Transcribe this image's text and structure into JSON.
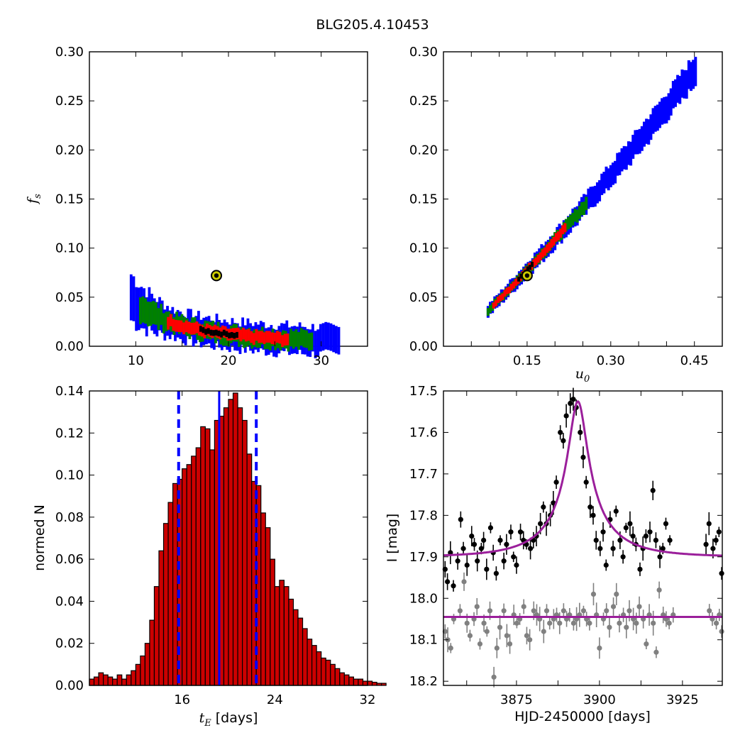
{
  "figure_title": "BLG205.4.10453",
  "colors": {
    "blue": "#0000ff",
    "green": "#008000",
    "red": "#ff0000",
    "black": "#000000",
    "hist_fill": "#cc0000",
    "grey": "#808080",
    "model": "#9b1f9b",
    "marker": "#cccc00"
  },
  "chart_data": [
    {
      "panel": "top-left",
      "type": "heatmap",
      "xlabel": "",
      "ylabel": "f_s",
      "ylabel_main": "f",
      "ylabel_sub": "s",
      "xlim": [
        5,
        35
      ],
      "ylim": [
        0.0,
        0.3
      ],
      "xticks": [
        "10",
        "20",
        "30"
      ],
      "yticks": [
        "0.00",
        "0.05",
        "0.10",
        "0.15",
        "0.20",
        "0.25",
        "0.30"
      ],
      "description_curve": "f_s = 3.6 / tE^1.9",
      "levels": [
        {
          "color": "blue",
          "tE_range": [
            9.5,
            32.0
          ]
        },
        {
          "color": "green",
          "tE_range": [
            10.5,
            29.0
          ]
        },
        {
          "color": "red",
          "tE_range": [
            13.5,
            26.5
          ]
        },
        {
          "color": "black",
          "tE_range": [
            17.0,
            21.0
          ]
        }
      ],
      "best_fit": {
        "tE": 18.7,
        "f_s": 0.072
      }
    },
    {
      "panel": "top-right",
      "type": "heatmap",
      "xlabel": "u_0",
      "xlabel_main": "u",
      "xlabel_sub": "0",
      "ylabel": "",
      "xlim": [
        0.0,
        0.5
      ],
      "ylim": [
        0.0,
        0.3
      ],
      "xticks": [
        "0.15",
        "0.30",
        "0.45"
      ],
      "yticks": [
        "0.00",
        "0.05",
        "0.10",
        "0.15",
        "0.20",
        "0.25",
        "0.30"
      ],
      "levels": [
        {
          "color": "blue",
          "u0_range": [
            0.08,
            0.455
          ]
        },
        {
          "color": "green",
          "u0_range": [
            0.08,
            0.26
          ]
        },
        {
          "color": "red",
          "u0_range": [
            0.09,
            0.22
          ]
        },
        {
          "color": "black",
          "u0_range": [
            0.135,
            0.16
          ]
        }
      ],
      "best_fit": {
        "u0": 0.15,
        "f_s": 0.072
      }
    },
    {
      "panel": "bottom-left",
      "type": "bar",
      "xlabel": "t_E [days]",
      "xlabel_main": "t",
      "xlabel_sub": "E",
      "xlabel_rest": " [days]",
      "ylabel": "normed N",
      "xlim": [
        8,
        32
      ],
      "ylim": [
        0.0,
        0.14
      ],
      "xticks": [
        "16",
        "24",
        "32"
      ],
      "yticks": [
        "0.00",
        "0.02",
        "0.04",
        "0.06",
        "0.08",
        "0.10",
        "0.12",
        "0.14"
      ],
      "bin_start": 8.0,
      "bin_width": 0.4,
      "values": [
        0.003,
        0.004,
        0.006,
        0.005,
        0.004,
        0.003,
        0.005,
        0.003,
        0.005,
        0.007,
        0.01,
        0.014,
        0.02,
        0.031,
        0.047,
        0.064,
        0.077,
        0.087,
        0.096,
        0.098,
        0.103,
        0.105,
        0.109,
        0.113,
        0.123,
        0.122,
        0.112,
        0.126,
        0.128,
        0.132,
        0.136,
        0.139,
        0.132,
        0.126,
        0.11,
        0.097,
        0.095,
        0.082,
        0.075,
        0.06,
        0.047,
        0.05,
        0.047,
        0.041,
        0.036,
        0.032,
        0.027,
        0.022,
        0.019,
        0.016,
        0.013,
        0.012,
        0.01,
        0.008,
        0.006,
        0.005,
        0.004,
        0.003,
        0.003,
        0.002,
        0.002,
        0.0015,
        0.001,
        0.001
      ],
      "median_line": 19.2,
      "dashed_lines": [
        15.7,
        22.4
      ]
    },
    {
      "panel": "bottom-right",
      "type": "scatter",
      "xlabel": "HJD-2450000 [days]",
      "ylabel": "I [mag]",
      "xlim": [
        3853,
        3937
      ],
      "ylim": [
        18.21,
        17.5
      ],
      "xticks": [
        "3875",
        "3900",
        "3925"
      ],
      "yticks": [
        "17.5",
        "17.6",
        "17.7",
        "17.8",
        "17.9",
        "18.0",
        "18.1",
        "18.2"
      ],
      "model": {
        "t0": 3893.5,
        "tE": 18.7,
        "u0": 0.15,
        "f_s": 0.072,
        "baseline": 17.9
      },
      "series": [
        {
          "name": "",
          "color": "black",
          "x": [
            3853.5,
            3854.2,
            3855.1,
            3856.0,
            3857.3,
            3858.2,
            3859.0,
            3860.1,
            3861.5,
            3862.3,
            3863.2,
            3864.4,
            3865.1,
            3866.0,
            3867.2,
            3868.0,
            3868.9,
            3870.1,
            3871.2,
            3872.0,
            3873.3,
            3874.1,
            3875.0,
            3876.2,
            3877.1,
            3878.0,
            3879.2,
            3880.1,
            3881.0,
            3882.2,
            3883.1,
            3884.0,
            3885.2,
            3886.1,
            3887.0,
            3888.2,
            3889.1,
            3890.0,
            3891.2,
            3892.1,
            3893.0,
            3894.2,
            3895.1,
            3896.0,
            3897.2,
            3898.1,
            3899.0,
            3900.2,
            3901.1,
            3902.0,
            3903.2,
            3904.1,
            3905.0,
            3906.2,
            3907.1,
            3908.0,
            3909.2,
            3910.1,
            3911.0,
            3912.2,
            3913.1,
            3914.0,
            3915.2,
            3916.1,
            3917.0,
            3918.2,
            3919.1,
            3920.0,
            3921.2,
            3932.1,
            3933.0,
            3934.2,
            3935.1,
            3936.0,
            3936.8
          ],
          "y": [
            17.93,
            17.96,
            17.89,
            17.97,
            17.91,
            17.81,
            17.88,
            17.92,
            17.85,
            17.87,
            17.91,
            17.88,
            17.86,
            17.93,
            17.83,
            17.89,
            17.94,
            17.86,
            17.91,
            17.87,
            17.84,
            17.9,
            17.92,
            17.84,
            17.86,
            17.87,
            17.88,
            17.86,
            17.85,
            17.82,
            17.78,
            17.82,
            17.8,
            17.77,
            17.72,
            17.6,
            17.62,
            17.56,
            17.53,
            17.52,
            17.54,
            17.6,
            17.66,
            17.72,
            17.78,
            17.8,
            17.86,
            17.88,
            17.84,
            17.92,
            17.81,
            17.88,
            17.79,
            17.86,
            17.9,
            17.83,
            17.82,
            17.85,
            17.87,
            17.93,
            17.88,
            17.85,
            17.84,
            17.74,
            17.86,
            17.9,
            17.88,
            17.82,
            17.86,
            17.87,
            17.82,
            17.88,
            17.86,
            17.84,
            17.94
          ]
        },
        {
          "name": "",
          "color": "grey",
          "x": [
            3853.5,
            3854.3,
            3855.2,
            3856.1,
            3858.0,
            3859.2,
            3860.1,
            3861.0,
            3862.2,
            3863.1,
            3864.0,
            3865.2,
            3866.1,
            3867.0,
            3868.2,
            3869.1,
            3870.0,
            3871.2,
            3872.1,
            3873.0,
            3874.2,
            3875.1,
            3876.0,
            3877.2,
            3878.1,
            3879.0,
            3880.2,
            3881.1,
            3882.0,
            3883.2,
            3884.1,
            3885.0,
            3886.2,
            3887.1,
            3888.0,
            3889.2,
            3890.1,
            3891.0,
            3892.2,
            3893.1,
            3894.0,
            3895.2,
            3896.1,
            3897.0,
            3898.2,
            3899.1,
            3900.0,
            3901.2,
            3902.1,
            3903.0,
            3904.2,
            3905.1,
            3906.0,
            3907.2,
            3908.1,
            3909.0,
            3910.2,
            3911.1,
            3912.0,
            3913.2,
            3914.1,
            3915.0,
            3916.2,
            3917.1,
            3918.0,
            3919.2,
            3920.1,
            3921.0,
            3922.2,
            3933.1,
            3934.0,
            3935.2,
            3936.1,
            3936.8
          ],
          "y": [
            18.08,
            18.1,
            18.12,
            18.05,
            18.03,
            17.96,
            18.06,
            18.09,
            18.05,
            18.02,
            18.11,
            18.06,
            18.08,
            18.03,
            18.19,
            18.12,
            18.07,
            18.03,
            18.09,
            18.11,
            18.04,
            18.06,
            18.05,
            18.02,
            18.09,
            18.1,
            18.03,
            18.04,
            18.05,
            18.08,
            18.03,
            18.06,
            18.05,
            18.04,
            18.06,
            18.03,
            18.05,
            18.04,
            18.06,
            18.05,
            18.04,
            18.03,
            18.05,
            18.06,
            17.99,
            18.04,
            18.12,
            18.05,
            18.03,
            18.07,
            18.02,
            17.99,
            18.06,
            18.04,
            18.07,
            18.03,
            18.05,
            18.06,
            18.02,
            18.05,
            18.11,
            18.04,
            18.06,
            18.13,
            17.98,
            18.04,
            18.05,
            18.06,
            18.04,
            18.03,
            18.05,
            18.06,
            18.04,
            18.08
          ]
        }
      ]
    }
  ]
}
